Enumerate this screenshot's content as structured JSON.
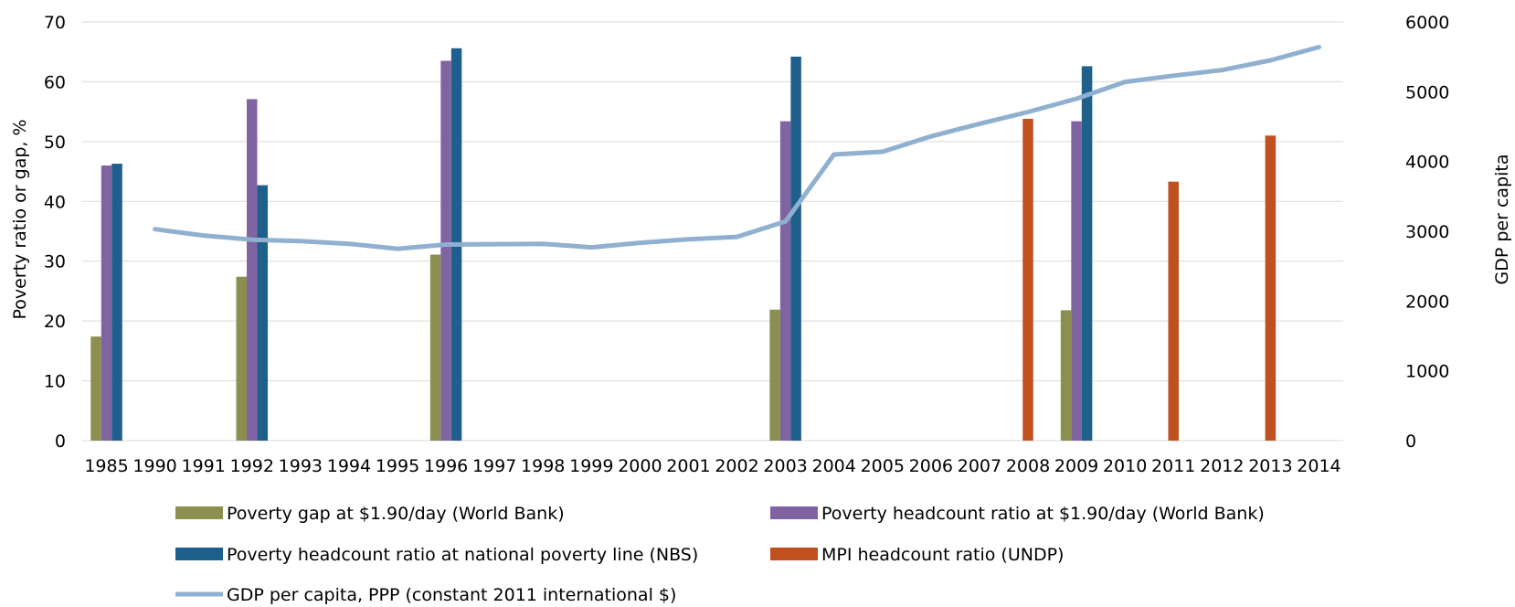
{
  "chart_data": {
    "type": "bar",
    "categories": [
      "1985",
      "1990",
      "1991",
      "1992",
      "1993",
      "1994",
      "1995",
      "1996",
      "1997",
      "1998",
      "1999",
      "2000",
      "2001",
      "2002",
      "2003",
      "2004",
      "2005",
      "2006",
      "2007",
      "2008",
      "2009",
      "2010",
      "2011",
      "2012",
      "2013",
      "2014"
    ],
    "ylabel": "Poverty ratio or gap, %",
    "y2label": "GDP per capita",
    "ylim": [
      0,
      70
    ],
    "y2lim": [
      0,
      6000
    ],
    "yticks": [
      "0",
      "10",
      "20",
      "30",
      "40",
      "50",
      "60",
      "70"
    ],
    "y2ticks": [
      "0",
      "1000",
      "2000",
      "3000",
      "4000",
      "5000",
      "6000"
    ],
    "grid": true,
    "legend_position": "bottom",
    "series": [
      {
        "name": "Poverty gap at $1.90/day (World Bank)",
        "type": "bar",
        "axis": "left",
        "color": "#8b8f4f",
        "values": [
          17.4,
          null,
          null,
          27.4,
          null,
          null,
          null,
          31.1,
          null,
          null,
          null,
          null,
          null,
          null,
          21.9,
          null,
          null,
          null,
          null,
          null,
          21.8,
          null,
          null,
          null,
          null,
          null
        ]
      },
      {
        "name": "Poverty headcount ratio at $1.90/day (World Bank)",
        "type": "bar",
        "axis": "left",
        "color": "#8064a2",
        "values": [
          46.0,
          null,
          null,
          57.1,
          null,
          null,
          null,
          63.5,
          null,
          null,
          null,
          null,
          null,
          null,
          53.4,
          null,
          null,
          null,
          null,
          null,
          53.4,
          null,
          null,
          null,
          null,
          null
        ]
      },
      {
        "name": "Poverty headcount ratio at national poverty line (NBS)",
        "type": "bar",
        "axis": "left",
        "color": "#1f5f8b",
        "values": [
          46.3,
          null,
          null,
          42.7,
          null,
          null,
          null,
          65.6,
          null,
          null,
          null,
          null,
          null,
          null,
          64.2,
          null,
          null,
          null,
          null,
          null,
          62.6,
          null,
          null,
          null,
          null,
          null
        ]
      },
      {
        "name": "MPI headcount ratio (UNDP)",
        "type": "bar",
        "axis": "left",
        "color": "#c0501f",
        "values": [
          null,
          null,
          null,
          null,
          null,
          null,
          null,
          null,
          null,
          null,
          null,
          null,
          null,
          null,
          null,
          null,
          null,
          null,
          null,
          53.8,
          null,
          null,
          43.3,
          null,
          51.0,
          null
        ]
      },
      {
        "name": "GDP per capita, PPP (constant 2011 international $)",
        "type": "line",
        "axis": "right",
        "color": "#8fb0cf",
        "values": [
          null,
          3030,
          2940,
          2880,
          2860,
          2820,
          2750,
          2810,
          2815,
          2820,
          2770,
          2835,
          2885,
          2920,
          3140,
          4100,
          4140,
          4360,
          4540,
          4710,
          4900,
          5140,
          5230,
          5310,
          5450,
          5640
        ]
      }
    ]
  },
  "legend": {
    "items": [
      "Poverty gap at $1.90/day (World Bank)",
      "Poverty headcount ratio at $1.90/day (World Bank)",
      "Poverty headcount ratio at national poverty line (NBS)",
      "MPI headcount ratio (UNDP)",
      "GDP per capita, PPP (constant 2011 international $)"
    ]
  }
}
